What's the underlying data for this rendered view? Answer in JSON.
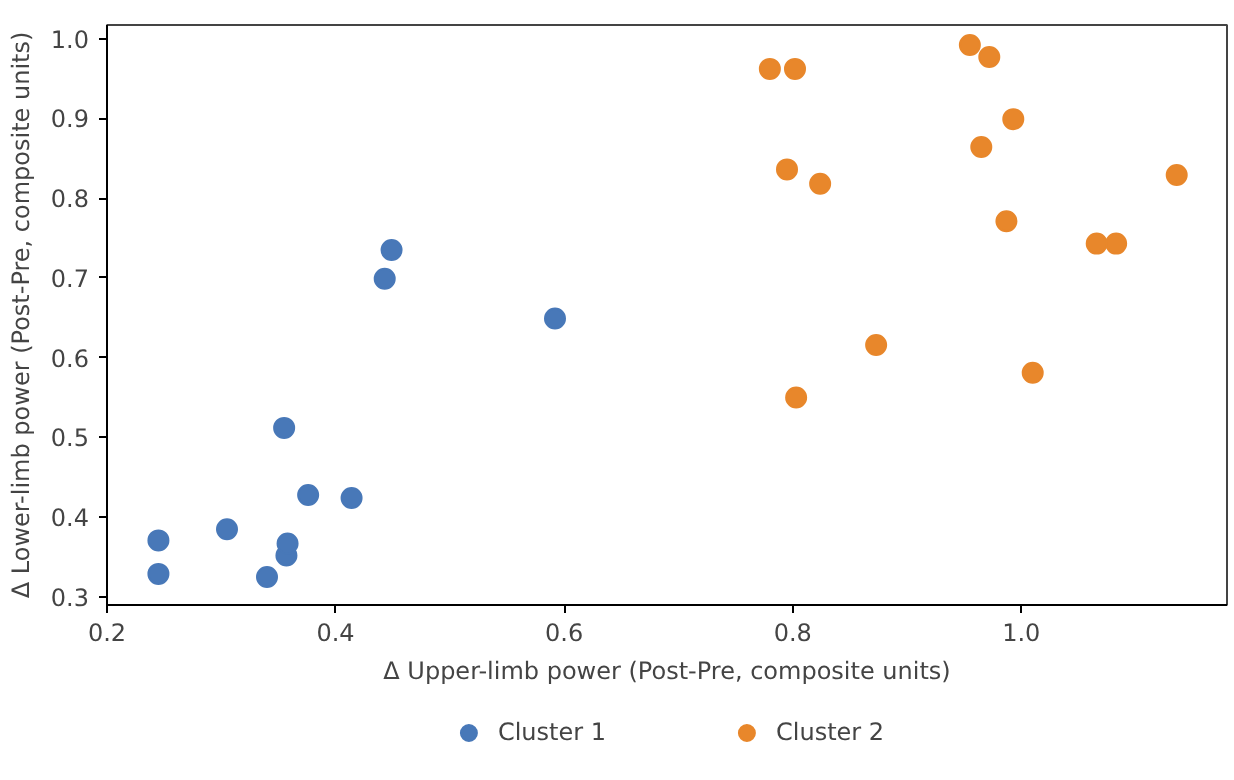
{
  "chart_data": {
    "type": "scatter",
    "xlabel": "Δ Upper-limb power (Post-Pre, composite units)",
    "ylabel": "Δ Lower-limb power (Post-Pre, composite units)",
    "xlim": [
      0.2,
      1.18
    ],
    "ylim": [
      0.29,
      1.017
    ],
    "xticks": [
      0.2,
      0.4,
      0.6,
      0.8,
      {
        "value": 1,
        "label": "1.0"
      }
    ],
    "yticks": [
      0.3,
      0.4,
      0.5,
      0.6,
      0.7,
      0.8,
      0.9,
      {
        "value": 1,
        "label": "1.0"
      }
    ],
    "grid": false,
    "legend": "bottom",
    "marker": "circle",
    "series": [
      {
        "name": "Cluster 1",
        "color": "#4878b8",
        "x": [
          0.245,
          0.245,
          0.305,
          0.34,
          0.357,
          0.358,
          0.355,
          0.376,
          0.414,
          0.443,
          0.449,
          0.592
        ],
        "values": [
          0.371,
          0.329,
          0.385,
          0.325,
          0.352,
          0.367,
          0.512,
          0.428,
          0.424,
          0.699,
          0.735,
          0.649
        ]
      },
      {
        "name": "Cluster 2",
        "color": "#e8872b",
        "x": [
          0.78,
          0.802,
          0.795,
          0.824,
          0.803,
          0.873,
          0.955,
          0.972,
          0.993,
          0.965,
          0.987,
          1.01,
          1.066,
          1.083,
          1.136
        ],
        "values": [
          0.962,
          0.962,
          0.836,
          0.818,
          0.55,
          0.616,
          0.992,
          0.977,
          0.899,
          0.864,
          0.771,
          0.581,
          0.743,
          0.743,
          0.829
        ]
      }
    ]
  }
}
